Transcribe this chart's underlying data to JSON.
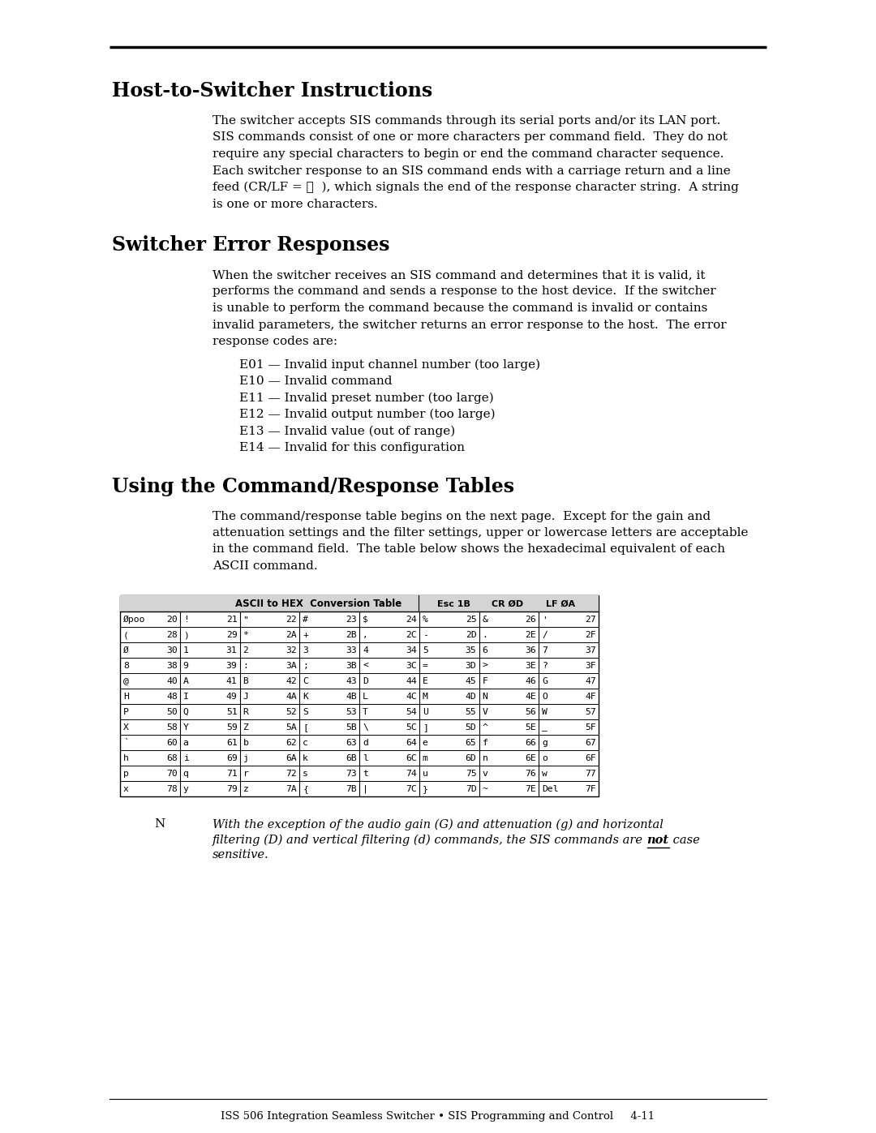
{
  "bg_color": "#ffffff",
  "section1_title": "Host-to-Switcher Instructions",
  "section1_body_lines": [
    "The switcher accepts SIS commands through its serial ports and/or its LAN port.",
    "SIS commands consist of one or more characters per command field.  They do not",
    "require any special characters to begin or end the command character sequence.",
    "Each switcher response to an SIS command ends with a carriage return and a line",
    "feed (CR/LF = ⏎  ), which signals the end of the response character string.  A string",
    "is one or more characters."
  ],
  "section2_title": "Switcher Error Responses",
  "section2_body_lines": [
    "When the switcher receives an SIS command and determines that it is valid, it",
    "performs the command and sends a response to the host device.  If the switcher",
    "is unable to perform the command because the command is invalid or contains",
    "invalid parameters, the switcher returns an error response to the host.  The error",
    "response codes are:"
  ],
  "error_codes": [
    "E01 — Invalid input channel number (too large)",
    "E10 — Invalid command",
    "E11 — Invalid preset number (too large)",
    "E12 — Invalid output number (too large)",
    "E13 — Invalid value (out of range)",
    "E14 — Invalid for this configuration"
  ],
  "section3_title": "Using the Command/Response Tables",
  "section3_body_lines": [
    "The command/response table begins on the next page.  Except for the gain and",
    "attenuation settings and the filter settings, upper or lowercase letters are acceptable",
    "in the command field.  The table below shows the hexadecimal equivalent of each",
    "ASCII command."
  ],
  "table_rows": [
    [
      "Øpoo 20",
      "! 21",
      "\" 22",
      "# 23",
      "$ 24",
      "% 25",
      "& 26",
      "' 27"
    ],
    [
      "( 28",
      ") 29",
      "* 2A",
      "+ 2B",
      ", 2C",
      "- 2D",
      ". 2E",
      "/ 2F"
    ],
    [
      "Ø 30",
      "1 31",
      "2 32",
      "3 33",
      "4 34",
      "5 35",
      "6 36",
      "7 37"
    ],
    [
      "8 38",
      "9 39",
      ": 3A",
      "; 3B",
      "< 3C",
      "= 3D",
      "> 3E",
      "? 3F"
    ],
    [
      "@ 40",
      "A 41",
      "B 42",
      "C 43",
      "D 44",
      "E 45",
      "F 46",
      "G 47"
    ],
    [
      "H 48",
      "I 49",
      "J 4A",
      "K 4B",
      "L 4C",
      "M 4D",
      "N 4E",
      "O 4F"
    ],
    [
      "P 50",
      "Q 51",
      "R 52",
      "S 53",
      "T 54",
      "U 55",
      "V 56",
      "W 57"
    ],
    [
      "X 58",
      "Y 59",
      "Z 5A",
      "[ 5B",
      "\\ 5C",
      "] 5D",
      "^ 5E",
      "_ 5F"
    ],
    [
      "` 60",
      "a 61",
      "b 62",
      "c 63",
      "d 64",
      "e 65",
      "f 66",
      "g 67"
    ],
    [
      "h 68",
      "i 69",
      "j 6A",
      "k 6B",
      "l 6C",
      "m 6D",
      "n 6E",
      "o 6F"
    ],
    [
      "p 70",
      "q 71",
      "r 72",
      "s 73",
      "t 74",
      "u 75",
      "v 76",
      "w 77"
    ],
    [
      "x 78",
      "y 79",
      "z 7A",
      "{ 7B",
      "| 7C",
      "} 7D",
      "~ 7E",
      "Del 7F"
    ]
  ],
  "note_label": "N",
  "note_lines_plain": [
    "With the exception of the audio gain (G) and attenuation (g) and horizontal",
    "filtering (D) and vertical filtering (d) commands, the SIS commands are ",
    "case"
  ],
  "note_line2_before": "filtering (D) and vertical filtering (d) commands, the SIS commands are ",
  "note_line2_not": "not",
  "note_line2_after": " case",
  "note_line3": "sensitive.",
  "footer_text": "ISS 506 Integration Seamless Switcher • SIS Programming and Control     4-11"
}
